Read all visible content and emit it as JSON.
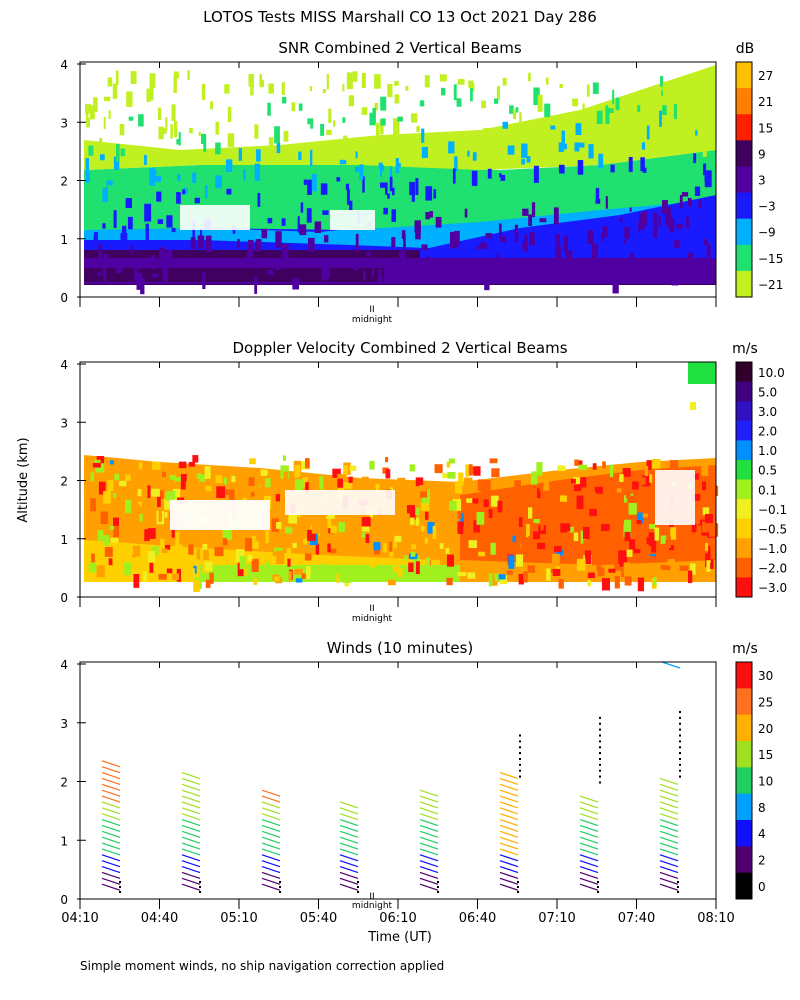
{
  "page": {
    "title": "LOTOS Tests MISS Marshall CO  13 Oct 2021 Day 286",
    "ylabel": "Altitude (km)",
    "xlabel": "Time (UT)",
    "footnote": "Simple moment winds, no ship navigation correction applied",
    "midnight_label": "midnight",
    "midnight_marker": "II"
  },
  "chart_data": [
    {
      "type": "heatmap",
      "title": "SNR Combined 2 Vertical Beams",
      "ylabel": "Altitude (km)",
      "y_ticks": [
        "0",
        "1",
        "2",
        "3",
        "4"
      ],
      "ylim": [
        0,
        4
      ],
      "x_range": [
        "04:10",
        "08:10"
      ],
      "colorbar_unit": "dB",
      "colorbar_labels": [
        "27",
        "21",
        "15",
        "9",
        "3",
        "−3",
        "−9",
        "−15",
        "−21"
      ],
      "colorbar_colors": [
        "#ffc000",
        "#ff8000",
        "#ff2000",
        "#400060",
        "#5000a0",
        "#1a1aff",
        "#00b0ff",
        "#20e070",
        "#c0f020"
      ]
    },
    {
      "type": "heatmap",
      "title": "Doppler Velocity Combined 2 Vertical Beams",
      "ylabel": "Altitude (km)",
      "y_ticks": [
        "0",
        "1",
        "2",
        "3",
        "4"
      ],
      "ylim": [
        0,
        4
      ],
      "x_range": [
        "04:10",
        "08:10"
      ],
      "colorbar_unit": "m/s",
      "colorbar_labels": [
        "10.0",
        "5.0",
        "3.0",
        "2.0",
        "1.0",
        "0.5",
        "0.1",
        "−0.1",
        "−0.5",
        "−1.0",
        "−2.0",
        "−3.0"
      ],
      "colorbar_colors": [
        "#30002a",
        "#400080",
        "#3010c0",
        "#2020ff",
        "#0090ff",
        "#20e040",
        "#a0f020",
        "#f0f020",
        "#ffd000",
        "#ffa000",
        "#ff6000",
        "#ff1010"
      ]
    },
    {
      "type": "scatter",
      "title": "Winds (10 minutes)",
      "ylabel": "Altitude (km)",
      "xlabel": "Time (UT)",
      "x_ticks": [
        "04:10",
        "04:40",
        "05:10",
        "05:40",
        "06:10",
        "06:40",
        "07:10",
        "07:40",
        "08:10"
      ],
      "y_ticks": [
        "0",
        "1",
        "2",
        "3",
        "4"
      ],
      "ylim": [
        0,
        4
      ],
      "colorbar_unit": "m/s",
      "colorbar_labels": [
        "30",
        "25",
        "20",
        "15",
        "10",
        "8",
        "4",
        "2",
        "0"
      ],
      "colorbar_colors": [
        "#ff1010",
        "#ff7020",
        "#ffb000",
        "#a0e020",
        "#20d060",
        "#00a0ff",
        "#1010ff",
        "#500070",
        "#000000"
      ],
      "profile_times": [
        "04:35",
        "05:00",
        "05:25",
        "05:50",
        "06:15",
        "06:40",
        "07:05",
        "07:30"
      ]
    }
  ]
}
